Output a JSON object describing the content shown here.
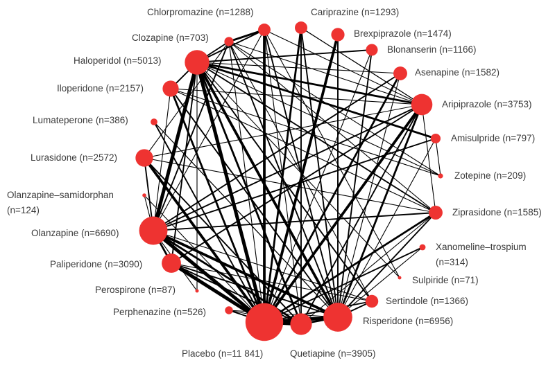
{
  "node_color": "#ee3331",
  "edge_color": "#000000",
  "nodes": [
    {
      "id": "chlorpromazine",
      "name": "Chlorpromazine",
      "n": 1288,
      "label": "Chlorpromazine (n=1288)"
    },
    {
      "id": "cariprazine",
      "name": "Cariprazine",
      "n": 1293,
      "label": "Cariprazine (n=1293)"
    },
    {
      "id": "brexpiprazole",
      "name": "Brexpiprazole",
      "n": 1474,
      "label": "Brexpiprazole (n=1474)"
    },
    {
      "id": "blonanserin",
      "name": "Blonanserin",
      "n": 1166,
      "label": "Blonanserin (n=1166)"
    },
    {
      "id": "asenapine",
      "name": "Asenapine",
      "n": 1582,
      "label": "Asenapine (n=1582)"
    },
    {
      "id": "aripiprazole",
      "name": "Aripiprazole",
      "n": 3753,
      "label": "Aripiprazole (n=3753)"
    },
    {
      "id": "amisulpride",
      "name": "Amisulpride",
      "n": 797,
      "label": "Amisulpride (n=797)"
    },
    {
      "id": "zotepine",
      "name": "Zotepine",
      "n": 209,
      "label": "Zotepine (n=209)"
    },
    {
      "id": "ziprasidone",
      "name": "Ziprasidone",
      "n": 1585,
      "label": "Ziprasidone (n=1585)"
    },
    {
      "id": "xanomeline",
      "name": "Xanomeline–trospium",
      "n": 314,
      "label": "Xanomeline–trospium",
      "label2": "(n=314)"
    },
    {
      "id": "sulpiride",
      "name": "Sulpiride",
      "n": 71,
      "label": "Sulpiride (n=71)"
    },
    {
      "id": "sertindole",
      "name": "Sertindole",
      "n": 1366,
      "label": "Sertindole (n=1366)"
    },
    {
      "id": "risperidone",
      "name": "Risperidone",
      "n": 6956,
      "label": "Risperidone (n=6956)"
    },
    {
      "id": "quetiapine",
      "name": "Quetiapine",
      "n": 3905,
      "label": "Quetiapine (n=3905)"
    },
    {
      "id": "placebo",
      "name": "Placebo",
      "n": 11841,
      "label": "Placebo (n=11 841)"
    },
    {
      "id": "perphenazine",
      "name": "Perphenazine",
      "n": 526,
      "label": "Perphenazine (n=526)"
    },
    {
      "id": "perospirone",
      "name": "Perospirone",
      "n": 87,
      "label": "Perospirone (n=87)"
    },
    {
      "id": "paliperidone",
      "name": "Paliperidone",
      "n": 3090,
      "label": "Paliperidone (n=3090)"
    },
    {
      "id": "olanzapine",
      "name": "Olanzapine",
      "n": 6690,
      "label": "Olanzapine (n=6690)"
    },
    {
      "id": "olz_sam",
      "name": "Olanzapine–samidorphan",
      "n": 124,
      "label": "Olanzapine–samidorphan",
      "label2": "(n=124)"
    },
    {
      "id": "lurasidone",
      "name": "Lurasidone",
      "n": 2572,
      "label": "Lurasidone (n=2572)"
    },
    {
      "id": "lumateperone",
      "name": "Lumateperone",
      "n": 386,
      "label": "Lumateperone (n=386)"
    },
    {
      "id": "iloperidone",
      "name": "Iloperidone",
      "n": 2157,
      "label": "Iloperidone (n=2157)"
    },
    {
      "id": "haloperidol",
      "name": "Haloperidol",
      "n": 5013,
      "label": "Haloperidol (n=5013)"
    },
    {
      "id": "clozapine",
      "name": "Clozapine",
      "n": 703,
      "label": "Clozapine (n=703)"
    }
  ],
  "edges": [
    [
      "placebo",
      "haloperidol",
      5
    ],
    [
      "placebo",
      "olanzapine",
      5
    ],
    [
      "placebo",
      "risperidone",
      5
    ],
    [
      "placebo",
      "quetiapine",
      5
    ],
    [
      "placebo",
      "aripiprazole",
      4
    ],
    [
      "placebo",
      "paliperidone",
      5
    ],
    [
      "placebo",
      "lurasidone",
      4
    ],
    [
      "placebo",
      "chlorpromazine",
      4
    ],
    [
      "placebo",
      "iloperidone",
      3
    ],
    [
      "placebo",
      "asenapine",
      3
    ],
    [
      "placebo",
      "brexpiprazole",
      4
    ],
    [
      "placebo",
      "cariprazine",
      3
    ],
    [
      "placebo",
      "ziprasidone",
      3
    ],
    [
      "placebo",
      "sertindole",
      2
    ],
    [
      "placebo",
      "xanomeline",
      2
    ],
    [
      "placebo",
      "lumateperone",
      2
    ],
    [
      "placebo",
      "olz_sam",
      1
    ],
    [
      "placebo",
      "perphenazine",
      2
    ],
    [
      "placebo",
      "blonanserin",
      1
    ],
    [
      "placebo",
      "clozapine",
      1
    ],
    [
      "haloperidol",
      "olanzapine",
      5
    ],
    [
      "haloperidol",
      "risperidone",
      4
    ],
    [
      "haloperidol",
      "quetiapine",
      3
    ],
    [
      "haloperidol",
      "aripiprazole",
      3
    ],
    [
      "haloperidol",
      "ziprasidone",
      2
    ],
    [
      "haloperidol",
      "amisulpride",
      3
    ],
    [
      "haloperidol",
      "asenapine",
      1
    ],
    [
      "haloperidol",
      "blonanserin",
      2
    ],
    [
      "haloperidol",
      "chlorpromazine",
      2
    ],
    [
      "haloperidol",
      "clozapine",
      2
    ],
    [
      "haloperidol",
      "iloperidone",
      2
    ],
    [
      "haloperidol",
      "sertindole",
      2
    ],
    [
      "haloperidol",
      "perospirone",
      1
    ],
    [
      "haloperidol",
      "paliperidone",
      2
    ],
    [
      "haloperidol",
      "zotepine",
      1
    ],
    [
      "haloperidol",
      "sulpiride",
      1
    ],
    [
      "olanzapine",
      "risperidone",
      4
    ],
    [
      "olanzapine",
      "quetiapine",
      3
    ],
    [
      "olanzapine",
      "aripiprazole",
      2
    ],
    [
      "olanzapine",
      "ziprasidone",
      2
    ],
    [
      "olanzapine",
      "asenapine",
      2
    ],
    [
      "olanzapine",
      "amisulpride",
      2
    ],
    [
      "olanzapine",
      "paliperidone",
      3
    ],
    [
      "olanzapine",
      "lurasidone",
      2
    ],
    [
      "olanzapine",
      "clozapine",
      2
    ],
    [
      "olanzapine",
      "chlorpromazine",
      1
    ],
    [
      "olanzapine",
      "olz_sam",
      1
    ],
    [
      "olanzapine",
      "iloperidone",
      1
    ],
    [
      "risperidone",
      "aripiprazole",
      3
    ],
    [
      "risperidone",
      "quetiapine",
      3
    ],
    [
      "risperidone",
      "ziprasidone",
      2
    ],
    [
      "risperidone",
      "paliperidone",
      2
    ],
    [
      "risperidone",
      "clozapine",
      2
    ],
    [
      "risperidone",
      "chlorpromazine",
      2
    ],
    [
      "risperidone",
      "iloperidone",
      2
    ],
    [
      "risperidone",
      "sertindole",
      2
    ],
    [
      "risperidone",
      "brexpiprazole",
      2
    ],
    [
      "risperidone",
      "cariprazine",
      2
    ],
    [
      "risperidone",
      "asenapine",
      1
    ],
    [
      "risperidone",
      "perphenazine",
      1
    ],
    [
      "risperidone",
      "lumateperone",
      1
    ],
    [
      "risperidone",
      "blonanserin",
      2
    ],
    [
      "risperidone",
      "amisulpride",
      1
    ],
    [
      "risperidone",
      "xanomeline",
      1
    ],
    [
      "quetiapine",
      "aripiprazole",
      2
    ],
    [
      "quetiapine",
      "ziprasidone",
      1
    ],
    [
      "quetiapine",
      "paliperidone",
      2
    ],
    [
      "quetiapine",
      "lurasidone",
      2
    ],
    [
      "quetiapine",
      "chlorpromazine",
      1
    ],
    [
      "quetiapine",
      "cariprazine",
      2
    ],
    [
      "quetiapine",
      "perphenazine",
      1
    ],
    [
      "aripiprazole",
      "paliperidone",
      2
    ],
    [
      "aripiprazole",
      "lurasidone",
      1
    ],
    [
      "aripiprazole",
      "ziprasidone",
      1
    ],
    [
      "aripiprazole",
      "cariprazine",
      1
    ],
    [
      "aripiprazole",
      "chlorpromazine",
      1
    ],
    [
      "aripiprazole",
      "iloperidone",
      1
    ],
    [
      "aripiprazole",
      "clozapine",
      1
    ],
    [
      "clozapine",
      "chlorpromazine",
      3
    ],
    [
      "clozapine",
      "zotepine",
      1
    ],
    [
      "clozapine",
      "ziprasidone",
      1
    ],
    [
      "clozapine",
      "sertindole",
      1
    ],
    [
      "lurasidone",
      "ziprasidone",
      1
    ],
    [
      "lurasidone",
      "clozapine",
      1
    ],
    [
      "iloperidone",
      "ziprasidone",
      1
    ],
    [
      "iloperidone",
      "zotepine",
      1
    ],
    [
      "lumateperone",
      "risperidone",
      1
    ],
    [
      "chlorpromazine",
      "sulpiride",
      1
    ],
    [
      "cariprazine",
      "aripiprazole",
      1
    ],
    [
      "amisulpride",
      "zotepine",
      1
    ],
    [
      "perospirone",
      "olanzapine",
      1
    ],
    [
      "paliperidone",
      "sertindole",
      1
    ],
    [
      "olanzapine",
      "sertindole",
      1
    ]
  ]
}
